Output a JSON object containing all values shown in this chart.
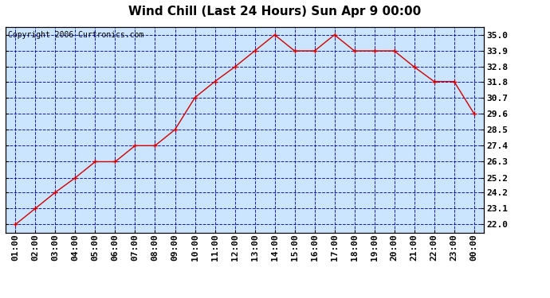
{
  "title": "Wind Chill (Last 24 Hours) Sun Apr 9 00:00",
  "copyright": "Copyright 2006 Curtronics.com",
  "x_labels": [
    "01:00",
    "02:00",
    "03:00",
    "04:00",
    "05:00",
    "06:00",
    "07:00",
    "08:00",
    "09:00",
    "10:00",
    "11:00",
    "12:00",
    "13:00",
    "14:00",
    "15:00",
    "16:00",
    "17:00",
    "18:00",
    "19:00",
    "20:00",
    "21:00",
    "22:00",
    "23:00",
    "00:00"
  ],
  "y_values": [
    22.0,
    23.1,
    24.2,
    25.2,
    26.3,
    26.3,
    27.4,
    27.4,
    28.5,
    30.7,
    31.8,
    32.8,
    33.9,
    35.0,
    33.9,
    33.9,
    35.0,
    33.9,
    33.9,
    33.9,
    32.8,
    31.8,
    31.8,
    29.6
  ],
  "y_ticks": [
    22.0,
    23.1,
    24.2,
    25.2,
    26.3,
    27.4,
    28.5,
    29.6,
    30.7,
    31.8,
    32.8,
    33.9,
    35.0
  ],
  "ylim": [
    21.45,
    35.55
  ],
  "line_color": "#cc0000",
  "marker": "+",
  "marker_color": "#cc0000",
  "bg_color": "#cce5ff",
  "grid_color": "#0000bb",
  "title_fontsize": 11,
  "copyright_fontsize": 7,
  "tick_fontsize": 8,
  "fig_width": 6.9,
  "fig_height": 3.75
}
